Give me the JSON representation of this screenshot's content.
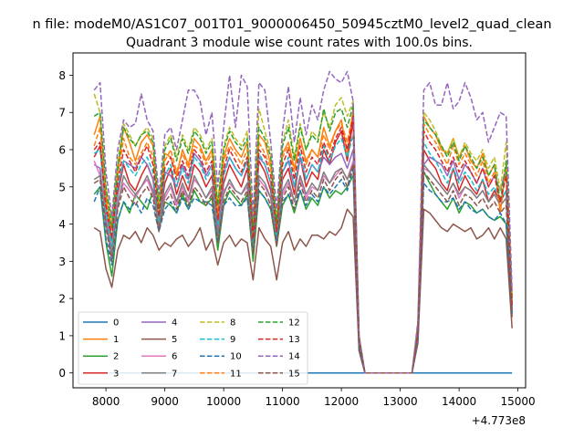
{
  "chart_data": {
    "type": "line",
    "suptitle": "n file: modeM0/AS1C07_001T01_9000006450_50945cztM0_level2_quad_clean",
    "title": "Quadrant 3 module wise count rates with 100.0s bins.",
    "xlabel": "",
    "ylabel": "",
    "x_offset_label": "+4.773e8",
    "xlim": [
      7440,
      15130
    ],
    "ylim": [
      -0.4,
      8.6
    ],
    "xticks": [
      8000,
      9000,
      10000,
      11000,
      12000,
      13000,
      14000,
      15000
    ],
    "xtick_labels": [
      "8000",
      "9000",
      "10000",
      "11000",
      "12000",
      "13000",
      "14000",
      "15000"
    ],
    "yticks": [
      0,
      1,
      2,
      3,
      4,
      5,
      6,
      7,
      8
    ],
    "ytick_labels": [
      "0",
      "1",
      "2",
      "3",
      "4",
      "5",
      "6",
      "7",
      "8"
    ],
    "legend": {
      "position": "lower-left",
      "ncol": 4
    },
    "x": [
      7800,
      7900,
      8000,
      8100,
      8200,
      8300,
      8400,
      8500,
      8600,
      8700,
      8800,
      8900,
      9000,
      9100,
      9200,
      9300,
      9400,
      9500,
      9600,
      9700,
      9800,
      9900,
      10000,
      10100,
      10200,
      10300,
      10400,
      10500,
      10600,
      10700,
      10800,
      10900,
      11000,
      11100,
      11200,
      11300,
      11400,
      11500,
      11600,
      11700,
      11800,
      11900,
      12000,
      12100,
      12200,
      12300,
      12400,
      12500,
      13200,
      13300,
      13400,
      13500,
      13600,
      13700,
      13800,
      13900,
      14000,
      14100,
      14200,
      14300,
      14400,
      14500,
      14600,
      14700,
      14800,
      14900
    ],
    "series": [
      {
        "name": "0",
        "color": "#1f77b4",
        "dash": "solid",
        "values": [
          0,
          0,
          0,
          0,
          0,
          0,
          0,
          0,
          0,
          0,
          0,
          0,
          0,
          0,
          0,
          0,
          0,
          0,
          0,
          0,
          0,
          0,
          0,
          0,
          0,
          0,
          0,
          0,
          0,
          0,
          0,
          0,
          0,
          0,
          0,
          0,
          0,
          0,
          0,
          0,
          0,
          0,
          0,
          0,
          0,
          0,
          0,
          0,
          0,
          0,
          0,
          0,
          0,
          0,
          0,
          0,
          0,
          0,
          0,
          0,
          0,
          0,
          0,
          0,
          0,
          0
        ]
      },
      {
        "name": "1",
        "color": "#ff7f0e",
        "dash": "solid",
        "values": [
          6.4,
          6.9,
          4.8,
          3.5,
          5.4,
          6.6,
          6.2,
          5.7,
          6.2,
          6.4,
          6.1,
          4.2,
          5.9,
          5.8,
          5.3,
          6.0,
          5.6,
          6.3,
          6.1,
          5.7,
          6.0,
          4.3,
          5.8,
          6.3,
          6.0,
          5.8,
          6.2,
          3.6,
          6.4,
          6.2,
          5.6,
          3.8,
          5.9,
          6.2,
          5.5,
          6.3,
          5.7,
          6.0,
          5.8,
          6.6,
          6.1,
          6.5,
          6.8,
          5.9,
          7.1,
          0.8,
          0,
          0,
          0,
          1.2,
          6.9,
          6.6,
          6.4,
          6.0,
          5.9,
          6.3,
          5.8,
          6.1,
          5.7,
          5.5,
          5.9,
          5.3,
          5.6,
          4.3,
          5.6,
          1.9
        ]
      },
      {
        "name": "2",
        "color": "#2ca02c",
        "dash": "solid",
        "values": [
          4.8,
          5.0,
          3.5,
          2.6,
          4.1,
          4.6,
          4.3,
          4.8,
          4.6,
          4.4,
          4.9,
          3.9,
          4.6,
          4.5,
          4.3,
          4.8,
          4.4,
          4.9,
          4.6,
          4.5,
          4.7,
          3.3,
          4.5,
          4.9,
          4.7,
          4.5,
          4.8,
          3.0,
          4.9,
          4.7,
          4.4,
          3.4,
          4.5,
          4.8,
          4.3,
          4.9,
          4.4,
          4.7,
          4.5,
          5.0,
          4.7,
          4.9,
          4.8,
          5.0,
          5.3,
          0.6,
          0,
          0,
          0,
          0.9,
          5.4,
          5.1,
          4.8,
          4.6,
          4.4,
          4.7,
          4.3,
          4.6,
          4.5,
          4.3,
          4.4,
          4.2,
          4.1,
          4.2,
          4.0,
          1.7
        ]
      },
      {
        "name": "3",
        "color": "#d62728",
        "dash": "solid",
        "values": [
          5.8,
          6.1,
          4.3,
          3.6,
          4.8,
          5.6,
          5.1,
          4.9,
          5.3,
          5.6,
          5.2,
          4.0,
          5.1,
          5.5,
          4.8,
          5.3,
          4.9,
          5.6,
          5.4,
          5.0,
          5.3,
          4.0,
          5.1,
          5.6,
          5.3,
          5.0,
          5.5,
          3.5,
          5.7,
          5.4,
          4.9,
          3.7,
          5.2,
          5.5,
          4.8,
          5.8,
          5.0,
          5.4,
          5.2,
          6.0,
          5.6,
          6.2,
          6.5,
          5.7,
          6.8,
          0.9,
          0,
          0,
          0,
          1.1,
          6.0,
          5.7,
          5.5,
          5.1,
          4.9,
          5.5,
          4.9,
          5.3,
          5.0,
          4.8,
          5.2,
          4.6,
          4.9,
          4.6,
          4.9,
          1.8
        ]
      },
      {
        "name": "4",
        "color": "#9467bd",
        "dash": "solid",
        "values": [
          5.6,
          5.5,
          4.0,
          3.1,
          4.9,
          5.7,
          5.6,
          5.5,
          5.8,
          5.6,
          5.2,
          3.9,
          5.4,
          5.3,
          5.0,
          5.6,
          5.2,
          5.9,
          5.7,
          5.3,
          5.6,
          3.8,
          5.4,
          5.8,
          5.5,
          5.3,
          5.7,
          3.2,
          5.8,
          5.6,
          5.1,
          3.5,
          5.4,
          5.7,
          5.0,
          5.8,
          5.2,
          5.6,
          5.4,
          5.8,
          5.6,
          5.8,
          5.9,
          5.5,
          6.0,
          0.8,
          0,
          0,
          0,
          1.0,
          5.6,
          5.8,
          5.7,
          5.6,
          5.3,
          5.7,
          5.2,
          5.6,
          5.4,
          5.1,
          5.5,
          5.0,
          5.3,
          4.9,
          5.5,
          1.6
        ]
      },
      {
        "name": "5",
        "color": "#8c564b",
        "dash": "solid",
        "values": [
          3.9,
          3.8,
          2.8,
          2.3,
          3.3,
          3.7,
          3.6,
          3.8,
          3.5,
          3.9,
          3.7,
          3.3,
          3.5,
          3.4,
          3.6,
          3.7,
          3.4,
          3.6,
          3.9,
          3.3,
          3.6,
          2.9,
          3.5,
          3.7,
          3.4,
          3.6,
          3.5,
          2.5,
          3.9,
          3.6,
          3.4,
          2.5,
          3.5,
          3.8,
          3.3,
          3.6,
          3.4,
          3.7,
          3.7,
          3.6,
          3.8,
          3.7,
          3.9,
          4.4,
          4.2,
          0.6,
          0,
          0,
          0,
          0.8,
          4.4,
          4.3,
          4.1,
          3.9,
          3.8,
          4.0,
          3.9,
          3.8,
          3.9,
          3.6,
          3.7,
          3.9,
          3.6,
          3.9,
          3.6,
          1.2
        ]
      },
      {
        "name": "6",
        "color": "#e377c2",
        "dash": "solid",
        "values": [
          5.7,
          5.3,
          4.2,
          3.3,
          4.6,
          5.1,
          4.9,
          4.7,
          5.0,
          5.2,
          4.8,
          4.0,
          4.7,
          5.0,
          4.5,
          5.0,
          4.6,
          5.2,
          5.0,
          4.7,
          4.9,
          3.7,
          4.9,
          5.1,
          4.9,
          4.8,
          5.0,
          3.3,
          5.2,
          5.0,
          4.7,
          3.5,
          4.8,
          5.1,
          4.6,
          5.2,
          4.7,
          5.0,
          4.9,
          5.3,
          5.1,
          5.3,
          5.5,
          5.2,
          5.7,
          0.8,
          0,
          0,
          0,
          1.0,
          5.5,
          5.4,
          5.2,
          5.0,
          4.8,
          5.1,
          4.7,
          5.0,
          4.9,
          4.7,
          4.9,
          4.6,
          4.8,
          4.5,
          4.7,
          1.7
        ]
      },
      {
        "name": "7",
        "color": "#7f7f7f",
        "dash": "solid",
        "values": [
          5.2,
          5.3,
          4.1,
          3.2,
          4.5,
          5.3,
          5.0,
          4.8,
          5.0,
          5.3,
          4.9,
          4.0,
          4.8,
          5.1,
          4.6,
          5.1,
          4.7,
          5.3,
          5.0,
          4.7,
          5.0,
          3.7,
          4.8,
          5.2,
          4.9,
          4.8,
          5.1,
          3.3,
          5.3,
          5.1,
          4.7,
          3.5,
          4.9,
          5.2,
          4.6,
          5.3,
          4.8,
          5.1,
          4.9,
          5.4,
          5.1,
          5.4,
          5.5,
          5.2,
          5.6,
          0.8,
          0,
          0,
          0,
          1.0,
          5.6,
          5.4,
          5.2,
          5.0,
          4.8,
          5.1,
          4.8,
          5.0,
          4.9,
          4.7,
          4.9,
          4.6,
          4.8,
          4.5,
          4.7,
          1.6
        ]
      },
      {
        "name": "8",
        "color": "#bcbd22",
        "dash": "dashed",
        "values": [
          7.5,
          7.0,
          5.0,
          4.1,
          5.7,
          6.7,
          6.4,
          6.1,
          6.4,
          6.6,
          6.3,
          4.6,
          6.1,
          6.4,
          5.8,
          6.4,
          6.0,
          6.6,
          6.4,
          6.0,
          6.3,
          4.6,
          6.1,
          6.6,
          6.3,
          6.1,
          6.5,
          3.9,
          7.1,
          6.5,
          5.9,
          4.2,
          6.2,
          6.8,
          5.8,
          6.7,
          6.0,
          6.5,
          6.3,
          7.0,
          6.6,
          7.2,
          7.4,
          6.9,
          7.3,
          1.0,
          0,
          0,
          0,
          1.3,
          7.0,
          6.8,
          6.5,
          6.1,
          5.9,
          6.3,
          5.8,
          6.2,
          5.9,
          5.7,
          6.0,
          5.5,
          5.8,
          4.9,
          6.2,
          2.1
        ]
      },
      {
        "name": "9",
        "color": "#17becf",
        "dash": "dashed",
        "values": [
          5.9,
          6.0,
          4.4,
          3.4,
          5.0,
          5.7,
          5.5,
          5.3,
          5.6,
          5.8,
          5.4,
          4.1,
          5.3,
          5.6,
          5.0,
          5.5,
          5.1,
          5.8,
          5.6,
          5.2,
          5.5,
          4.0,
          5.3,
          5.8,
          5.5,
          5.3,
          5.7,
          3.4,
          5.9,
          5.6,
          5.1,
          3.7,
          5.4,
          5.8,
          5.0,
          5.9,
          5.2,
          5.6,
          5.4,
          6.1,
          5.7,
          6.1,
          6.3,
          5.8,
          6.4,
          0.9,
          0,
          0,
          0,
          1.1,
          6.2,
          5.9,
          5.7,
          5.4,
          5.1,
          5.5,
          5.1,
          5.4,
          5.2,
          4.9,
          5.2,
          4.8,
          5.0,
          4.6,
          4.9,
          1.8
        ]
      },
      {
        "name": "10",
        "color": "#1f77b4",
        "dash": "dashed",
        "values": [
          4.6,
          5.0,
          3.6,
          2.9,
          4.1,
          4.6,
          4.4,
          4.6,
          4.3,
          4.7,
          4.5,
          3.8,
          4.4,
          4.6,
          4.3,
          4.7,
          4.4,
          4.7,
          4.6,
          4.6,
          4.5,
          3.5,
          4.5,
          4.7,
          4.5,
          4.5,
          4.7,
          3.2,
          4.9,
          4.7,
          4.4,
          3.5,
          4.6,
          4.8,
          4.4,
          4.9,
          4.5,
          4.8,
          4.6,
          5.0,
          4.8,
          5.0,
          5.2,
          4.9,
          5.5,
          0.7,
          0,
          0,
          0,
          0.9,
          5.1,
          4.9,
          4.8,
          4.6,
          4.6,
          4.7,
          4.4,
          4.6,
          4.4,
          4.3,
          4.4,
          4.2,
          4.1,
          4.3,
          4.0,
          1.6
        ]
      },
      {
        "name": "11",
        "color": "#ff7f0e",
        "dash": "dashed",
        "values": [
          6.1,
          6.6,
          4.6,
          3.9,
          5.3,
          6.3,
          5.8,
          5.6,
          5.9,
          6.2,
          5.8,
          4.3,
          5.7,
          6.0,
          5.4,
          5.9,
          5.5,
          6.1,
          6.0,
          5.6,
          5.9,
          4.2,
          5.7,
          6.1,
          5.9,
          5.6,
          6.0,
          3.7,
          6.2,
          5.9,
          5.5,
          3.9,
          5.8,
          6.1,
          5.4,
          6.3,
          5.6,
          6.0,
          5.8,
          6.4,
          6.0,
          6.5,
          6.7,
          6.2,
          7.0,
          0.9,
          0,
          0,
          0,
          1.2,
          6.7,
          6.4,
          6.2,
          5.9,
          5.6,
          6.1,
          5.6,
          5.9,
          5.6,
          5.3,
          5.7,
          5.1,
          5.4,
          4.4,
          5.5,
          1.9
        ]
      },
      {
        "name": "12",
        "color": "#2ca02c",
        "dash": "dashed",
        "values": [
          6.9,
          7.0,
          5.0,
          3.9,
          5.5,
          6.6,
          6.3,
          6.1,
          6.4,
          6.5,
          6.2,
          4.4,
          6.0,
          6.3,
          5.7,
          6.3,
          5.9,
          6.5,
          6.3,
          5.9,
          6.2,
          4.5,
          6.0,
          6.5,
          6.2,
          6.0,
          6.3,
          3.8,
          6.6,
          6.3,
          5.8,
          4.0,
          6.1,
          6.6,
          5.7,
          6.6,
          6.0,
          6.4,
          6.2,
          7.1,
          6.5,
          7.0,
          7.1,
          6.6,
          7.2,
          1.0,
          0,
          0,
          0,
          1.3,
          6.8,
          6.6,
          6.4,
          6.1,
          5.8,
          6.2,
          5.7,
          6.1,
          5.8,
          5.5,
          5.8,
          5.3,
          5.6,
          4.6,
          5.7,
          2.0
        ]
      },
      {
        "name": "13",
        "color": "#d62728",
        "dash": "dashed",
        "values": [
          6.0,
          6.2,
          4.5,
          3.7,
          5.1,
          6.0,
          5.7,
          5.4,
          5.8,
          6.1,
          5.6,
          4.2,
          5.5,
          5.8,
          5.2,
          5.7,
          5.3,
          6.0,
          5.8,
          5.4,
          5.7,
          4.1,
          5.5,
          6.0,
          5.7,
          5.4,
          5.8,
          3.6,
          6.0,
          5.8,
          5.3,
          3.8,
          5.6,
          6.0,
          5.2,
          6.1,
          5.4,
          5.8,
          5.6,
          6.2,
          5.8,
          6.3,
          6.6,
          6.0,
          6.9,
          0.9,
          0,
          0,
          0,
          1.1,
          6.5,
          6.2,
          6.0,
          5.7,
          5.4,
          5.8,
          5.4,
          5.7,
          5.4,
          5.1,
          5.5,
          5.0,
          5.3,
          4.6,
          5.3,
          1.8
        ]
      },
      {
        "name": "14",
        "color": "#9467bd",
        "dash": "dashed",
        "values": [
          7.6,
          7.8,
          5.4,
          4.2,
          6.0,
          6.8,
          6.6,
          6.7,
          7.5,
          6.8,
          6.5,
          4.8,
          6.4,
          6.6,
          6.0,
          6.8,
          7.6,
          7.6,
          7.3,
          6.4,
          7.0,
          5.0,
          6.6,
          8.0,
          6.6,
          8.0,
          7.7,
          4.2,
          7.8,
          7.6,
          6.2,
          4.4,
          6.5,
          7.7,
          6.2,
          7.4,
          6.4,
          7.2,
          6.8,
          7.6,
          8.1,
          7.9,
          7.8,
          8.1,
          7.3,
          1.0,
          0,
          0,
          0,
          1.4,
          7.6,
          7.8,
          7.2,
          7.2,
          7.8,
          7.1,
          7.3,
          7.8,
          7.4,
          6.8,
          7.0,
          6.2,
          6.6,
          7.0,
          6.9,
          2.2
        ]
      },
      {
        "name": "15",
        "color": "#8c564b",
        "dash": "dashed",
        "values": [
          5.1,
          5.2,
          3.9,
          3.0,
          4.4,
          5.0,
          4.7,
          4.5,
          4.8,
          5.0,
          4.7,
          3.8,
          4.6,
          4.8,
          4.4,
          4.9,
          4.5,
          5.0,
          4.8,
          4.5,
          4.8,
          3.5,
          4.6,
          5.0,
          4.8,
          4.6,
          4.9,
          3.2,
          5.1,
          4.9,
          4.5,
          3.4,
          4.7,
          5.0,
          4.4,
          5.1,
          4.6,
          4.9,
          4.7,
          5.2,
          4.9,
          5.2,
          5.4,
          5.0,
          5.6,
          0.8,
          0,
          0,
          0,
          1.0,
          5.4,
          5.2,
          5.0,
          4.8,
          4.6,
          4.9,
          4.5,
          4.8,
          4.7,
          4.5,
          4.7,
          4.4,
          4.6,
          4.3,
          4.5,
          1.5
        ]
      }
    ]
  }
}
